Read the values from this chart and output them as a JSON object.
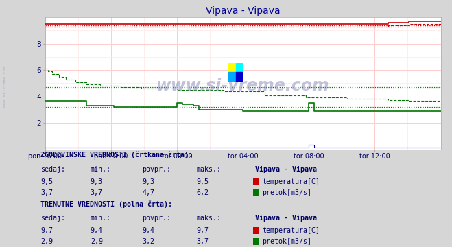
{
  "title": "Vipava - Vipava",
  "title_color": "#000099",
  "bg_color": "#d6d6d6",
  "plot_bg_color": "#ffffff",
  "xlim": [
    0,
    288
  ],
  "ylim": [
    0,
    10
  ],
  "yticks": [
    2,
    4,
    6,
    8
  ],
  "xtick_labels": [
    "pon 16:00",
    "pon 20:00",
    "tor 00:00",
    "tor 04:00",
    "tor 08:00",
    "tor 12:00"
  ],
  "xtick_positions": [
    0,
    48,
    96,
    144,
    192,
    240
  ],
  "temp_color": "#cc0000",
  "flow_color": "#007700",
  "blue_color": "#0000bb",
  "grid_h_color": "#ffcccc",
  "grid_v_color": "#ffcccc",
  "watermark_text": "www.si-vreme.com",
  "watermark_color": "#8888bb",
  "left_text": "www.si-vreme.com",
  "xlabel_color": "#000066",
  "ylabel_color": "#000066",
  "num_points": 289,
  "hist_temp_avg": 9.3,
  "hist_flow_avg": 4.7,
  "curr_temp_avg": 9.4,
  "curr_flow_avg": 3.2,
  "table_text_color": "#000066",
  "table_bg": "#d6d6d6"
}
